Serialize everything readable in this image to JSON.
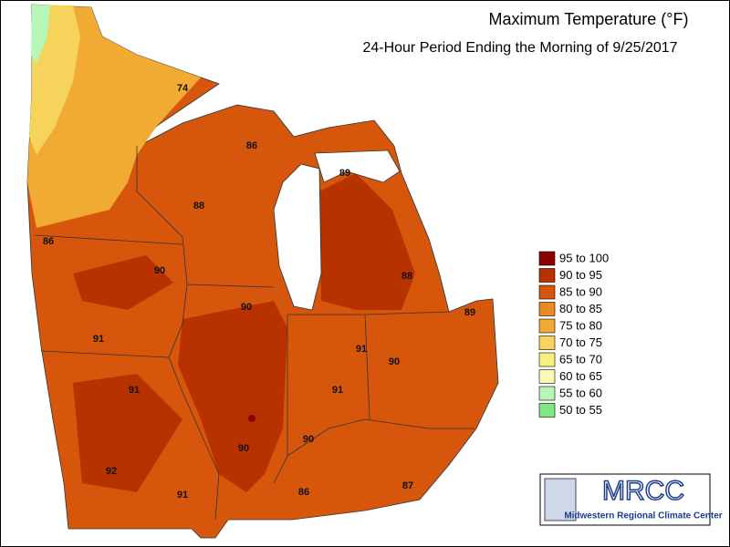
{
  "header": {
    "title": "Maximum Temperature (°F)",
    "subtitle": "24-Hour Period Ending the Morning of 9/25/2017"
  },
  "legend": [
    {
      "label": "95 to 100",
      "color": "#8b0000"
    },
    {
      "label": "90 to 95",
      "color": "#b83200"
    },
    {
      "label": "85 to 90",
      "color": "#d6560c"
    },
    {
      "label": "80 to 85",
      "color": "#e98a22"
    },
    {
      "label": "75 to 80",
      "color": "#f2ab32"
    },
    {
      "label": "70 to 75",
      "color": "#f6d35a"
    },
    {
      "label": "65 to 70",
      "color": "#f9ef7c"
    },
    {
      "label": "60 to 65",
      "color": "#fbf8b6"
    },
    {
      "label": "55 to 60",
      "color": "#b6f6b6"
    },
    {
      "label": "50 to 55",
      "color": "#80e880"
    }
  ],
  "map_labels": [
    74,
    86,
    89,
    88,
    86,
    90,
    88,
    90,
    89,
    91,
    91,
    90,
    91,
    91,
    90,
    90,
    92,
    91,
    86,
    87
  ],
  "logo": {
    "name": "MRCC",
    "full_name": "Midwestern Regional Climate Center"
  }
}
